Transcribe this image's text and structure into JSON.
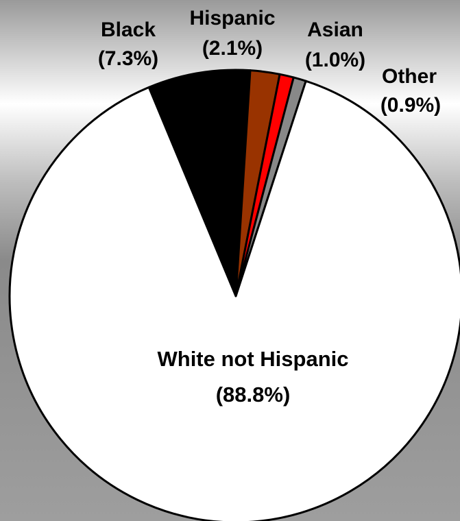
{
  "chart_data": {
    "type": "pie",
    "start_angle_deg": -22.6,
    "direction": "clockwise",
    "slices": [
      {
        "name": "Black",
        "label": "Black",
        "pct_label": "(7.3%)",
        "value": 7.3,
        "color": "#000000"
      },
      {
        "name": "Hispanic",
        "label": "Hispanic",
        "pct_label": "(2.1%)",
        "value": 2.1,
        "color": "#993300"
      },
      {
        "name": "Asian",
        "label": "Asian",
        "pct_label": "(1.0%)",
        "value": 1.0,
        "color": "#ff0000"
      },
      {
        "name": "Other",
        "label": "Other",
        "pct_label": "(0.9%)",
        "value": 0.9,
        "color": "#888888"
      },
      {
        "name": "White not Hispanic",
        "label": "White not Hispanic",
        "pct_label": "(88.8%)",
        "value": 88.8,
        "color": "#ffffff"
      }
    ],
    "legend": "none"
  }
}
